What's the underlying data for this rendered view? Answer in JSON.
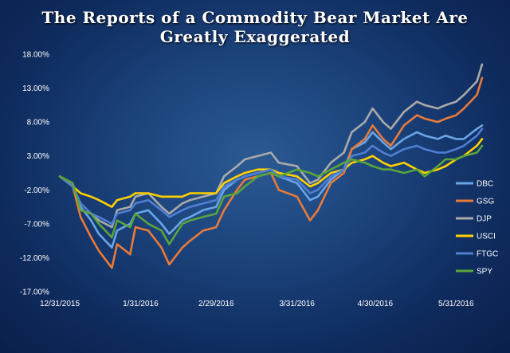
{
  "chart_data": {
    "type": "line",
    "title": "The Reports of a Commodity Bear Market Are Greatly Exaggerated",
    "x_tick_labels": [
      "12/31/2015",
      "1/31/2016",
      "2/29/2016",
      "3/31/2016",
      "4/30/2016",
      "5/31/2016"
    ],
    "x_range": [
      "2015-12-31",
      "2016-06-10"
    ],
    "y_ticks": [
      -17,
      -12,
      -7,
      -2,
      3,
      8,
      13,
      18
    ],
    "y_tick_labels": [
      "-17.00%",
      "-12.00%",
      "-7.00%",
      "-2.00%",
      "3.00%",
      "8.00%",
      "13.00%",
      "18.00%"
    ],
    "ylim": [
      -17,
      18
    ],
    "y_unit": "%",
    "grid": false,
    "legend_position": "right",
    "series": [
      {
        "name": "DBC",
        "color": "#6aa5e6",
        "points": [
          [
            "2015-12-31",
            0
          ],
          [
            "2016-01-05",
            -1.5
          ],
          [
            "2016-01-08",
            -4.5
          ],
          [
            "2016-01-12",
            -6.5
          ],
          [
            "2016-01-15",
            -8.5
          ],
          [
            "2016-01-20",
            -10.5
          ],
          [
            "2016-01-22",
            -8
          ],
          [
            "2016-01-27",
            -7
          ],
          [
            "2016-01-29",
            -5.5
          ],
          [
            "2016-02-03",
            -5
          ],
          [
            "2016-02-08",
            -7
          ],
          [
            "2016-02-11",
            -8.5
          ],
          [
            "2016-02-16",
            -6.5
          ],
          [
            "2016-02-19",
            -6
          ],
          [
            "2016-02-24",
            -5
          ],
          [
            "2016-02-29",
            -4.5
          ],
          [
            "2016-03-03",
            -2
          ],
          [
            "2016-03-08",
            -0.5
          ],
          [
            "2016-03-11",
            0
          ],
          [
            "2016-03-16",
            0.5
          ],
          [
            "2016-03-21",
            1
          ],
          [
            "2016-03-24",
            0
          ],
          [
            "2016-03-31",
            -1
          ],
          [
            "2016-04-05",
            -3.5
          ],
          [
            "2016-04-08",
            -3
          ],
          [
            "2016-04-13",
            -0.5
          ],
          [
            "2016-04-18",
            1
          ],
          [
            "2016-04-21",
            4
          ],
          [
            "2016-04-26",
            5
          ],
          [
            "2016-04-29",
            6.5
          ],
          [
            "2016-05-03",
            5
          ],
          [
            "2016-05-06",
            4
          ],
          [
            "2016-05-11",
            5.5
          ],
          [
            "2016-05-16",
            6.5
          ],
          [
            "2016-05-19",
            6
          ],
          [
            "2016-05-24",
            5.5
          ],
          [
            "2016-05-27",
            6
          ],
          [
            "2016-05-31",
            5.5
          ],
          [
            "2016-06-03",
            5.5
          ],
          [
            "2016-06-08",
            7
          ],
          [
            "2016-06-10",
            7.5
          ]
        ]
      },
      {
        "name": "GSG",
        "color": "#e87a3a",
        "points": [
          [
            "2015-12-31",
            0
          ],
          [
            "2016-01-05",
            -1.5
          ],
          [
            "2016-01-08",
            -6
          ],
          [
            "2016-01-12",
            -9
          ],
          [
            "2016-01-15",
            -11
          ],
          [
            "2016-01-20",
            -13.5
          ],
          [
            "2016-01-22",
            -10
          ],
          [
            "2016-01-27",
            -11.5
          ],
          [
            "2016-01-29",
            -7.5
          ],
          [
            "2016-02-03",
            -8
          ],
          [
            "2016-02-08",
            -10.5
          ],
          [
            "2016-02-11",
            -13
          ],
          [
            "2016-02-16",
            -10.5
          ],
          [
            "2016-02-19",
            -9.5
          ],
          [
            "2016-02-24",
            -8
          ],
          [
            "2016-02-29",
            -7.5
          ],
          [
            "2016-03-03",
            -5
          ],
          [
            "2016-03-08",
            -2
          ],
          [
            "2016-03-11",
            -0.5
          ],
          [
            "2016-03-16",
            0
          ],
          [
            "2016-03-21",
            0.5
          ],
          [
            "2016-03-24",
            -2
          ],
          [
            "2016-03-31",
            -3
          ],
          [
            "2016-04-05",
            -6.5
          ],
          [
            "2016-04-08",
            -5
          ],
          [
            "2016-04-13",
            -1
          ],
          [
            "2016-04-18",
            0.5
          ],
          [
            "2016-04-21",
            4
          ],
          [
            "2016-04-26",
            5.5
          ],
          [
            "2016-04-29",
            7.5
          ],
          [
            "2016-05-03",
            5.5
          ],
          [
            "2016-05-06",
            4.5
          ],
          [
            "2016-05-11",
            7.5
          ],
          [
            "2016-05-16",
            9
          ],
          [
            "2016-05-19",
            8.5
          ],
          [
            "2016-05-24",
            8
          ],
          [
            "2016-05-27",
            8.5
          ],
          [
            "2016-05-31",
            9
          ],
          [
            "2016-06-03",
            10
          ],
          [
            "2016-06-08",
            12
          ],
          [
            "2016-06-10",
            14.5
          ]
        ]
      },
      {
        "name": "DJP",
        "color": "#aaaaaa",
        "points": [
          [
            "2015-12-31",
            0
          ],
          [
            "2016-01-05",
            -1.5
          ],
          [
            "2016-01-08",
            -4
          ],
          [
            "2016-01-12",
            -5.5
          ],
          [
            "2016-01-15",
            -6.5
          ],
          [
            "2016-01-20",
            -7.5
          ],
          [
            "2016-01-22",
            -5
          ],
          [
            "2016-01-27",
            -4.5
          ],
          [
            "2016-01-29",
            -3
          ],
          [
            "2016-02-03",
            -2.5
          ],
          [
            "2016-02-08",
            -4.5
          ],
          [
            "2016-02-11",
            -5.5
          ],
          [
            "2016-02-16",
            -4
          ],
          [
            "2016-02-19",
            -3.5
          ],
          [
            "2016-02-24",
            -3
          ],
          [
            "2016-02-29",
            -2.5
          ],
          [
            "2016-03-03",
            0
          ],
          [
            "2016-03-08",
            1.5
          ],
          [
            "2016-03-11",
            2.5
          ],
          [
            "2016-03-16",
            3
          ],
          [
            "2016-03-21",
            3.5
          ],
          [
            "2016-03-24",
            2
          ],
          [
            "2016-03-31",
            1.5
          ],
          [
            "2016-04-05",
            -1
          ],
          [
            "2016-04-08",
            -0.5
          ],
          [
            "2016-04-13",
            2
          ],
          [
            "2016-04-18",
            3.5
          ],
          [
            "2016-04-21",
            6.5
          ],
          [
            "2016-04-26",
            8
          ],
          [
            "2016-04-29",
            10
          ],
          [
            "2016-05-03",
            8
          ],
          [
            "2016-05-06",
            7
          ],
          [
            "2016-05-11",
            9.5
          ],
          [
            "2016-05-16",
            11
          ],
          [
            "2016-05-19",
            10.5
          ],
          [
            "2016-05-24",
            10
          ],
          [
            "2016-05-27",
            10.5
          ],
          [
            "2016-05-31",
            11
          ],
          [
            "2016-06-03",
            12
          ],
          [
            "2016-06-08",
            14
          ],
          [
            "2016-06-10",
            16.5
          ]
        ]
      },
      {
        "name": "USCI",
        "color": "#ffd000",
        "points": [
          [
            "2015-12-31",
            0
          ],
          [
            "2016-01-05",
            -1.5
          ],
          [
            "2016-01-08",
            -2.5
          ],
          [
            "2016-01-12",
            -3
          ],
          [
            "2016-01-15",
            -3.5
          ],
          [
            "2016-01-20",
            -4.5
          ],
          [
            "2016-01-22",
            -3.5
          ],
          [
            "2016-01-27",
            -3
          ],
          [
            "2016-01-29",
            -2.5
          ],
          [
            "2016-02-03",
            -2.5
          ],
          [
            "2016-02-08",
            -3
          ],
          [
            "2016-02-11",
            -3
          ],
          [
            "2016-02-16",
            -3
          ],
          [
            "2016-02-19",
            -2.5
          ],
          [
            "2016-02-24",
            -2.5
          ],
          [
            "2016-02-29",
            -2.5
          ],
          [
            "2016-03-03",
            -1
          ],
          [
            "2016-03-08",
            0
          ],
          [
            "2016-03-11",
            0.5
          ],
          [
            "2016-03-16",
            1
          ],
          [
            "2016-03-21",
            1
          ],
          [
            "2016-03-24",
            0.5
          ],
          [
            "2016-03-31",
            0
          ],
          [
            "2016-04-05",
            -1.5
          ],
          [
            "2016-04-08",
            -1
          ],
          [
            "2016-04-13",
            0.5
          ],
          [
            "2016-04-18",
            1
          ],
          [
            "2016-04-21",
            2
          ],
          [
            "2016-04-26",
            2.5
          ],
          [
            "2016-04-29",
            3
          ],
          [
            "2016-05-03",
            2
          ],
          [
            "2016-05-06",
            1.5
          ],
          [
            "2016-05-11",
            2
          ],
          [
            "2016-05-16",
            1
          ],
          [
            "2016-05-19",
            0.5
          ],
          [
            "2016-05-24",
            1
          ],
          [
            "2016-05-27",
            1.5
          ],
          [
            "2016-05-31",
            2.5
          ],
          [
            "2016-06-03",
            3
          ],
          [
            "2016-06-08",
            4.5
          ],
          [
            "2016-06-10",
            5.5
          ]
        ]
      },
      {
        "name": "FTGC",
        "color": "#4f7fd3",
        "points": [
          [
            "2015-12-31",
            0
          ],
          [
            "2016-01-05",
            -1.5
          ],
          [
            "2016-01-08",
            -4
          ],
          [
            "2016-01-12",
            -5.5
          ],
          [
            "2016-01-15",
            -6
          ],
          [
            "2016-01-20",
            -7
          ],
          [
            "2016-01-22",
            -5.5
          ],
          [
            "2016-01-27",
            -5
          ],
          [
            "2016-01-29",
            -4
          ],
          [
            "2016-02-03",
            -3.5
          ],
          [
            "2016-02-08",
            -5
          ],
          [
            "2016-02-11",
            -6
          ],
          [
            "2016-02-16",
            -5
          ],
          [
            "2016-02-19",
            -4.5
          ],
          [
            "2016-02-24",
            -4
          ],
          [
            "2016-02-29",
            -3.5
          ],
          [
            "2016-03-03",
            -1.5
          ],
          [
            "2016-03-08",
            -0.5
          ],
          [
            "2016-03-11",
            0
          ],
          [
            "2016-03-16",
            0.5
          ],
          [
            "2016-03-21",
            1
          ],
          [
            "2016-03-24",
            0
          ],
          [
            "2016-03-31",
            -0.5
          ],
          [
            "2016-04-05",
            -2.5
          ],
          [
            "2016-04-08",
            -2
          ],
          [
            "2016-04-13",
            0
          ],
          [
            "2016-04-18",
            1
          ],
          [
            "2016-04-21",
            3
          ],
          [
            "2016-04-26",
            3.5
          ],
          [
            "2016-04-29",
            4.5
          ],
          [
            "2016-05-03",
            3.5
          ],
          [
            "2016-05-06",
            3
          ],
          [
            "2016-05-11",
            4
          ],
          [
            "2016-05-16",
            4.5
          ],
          [
            "2016-05-19",
            4
          ],
          [
            "2016-05-24",
            3.5
          ],
          [
            "2016-05-27",
            3.5
          ],
          [
            "2016-05-31",
            4
          ],
          [
            "2016-06-03",
            4.5
          ],
          [
            "2016-06-08",
            6
          ],
          [
            "2016-06-10",
            7
          ]
        ]
      },
      {
        "name": "SPY",
        "color": "#5aa53a",
        "points": [
          [
            "2015-12-31",
            0
          ],
          [
            "2016-01-05",
            -1
          ],
          [
            "2016-01-08",
            -5
          ],
          [
            "2016-01-12",
            -5.5
          ],
          [
            "2016-01-15",
            -7
          ],
          [
            "2016-01-20",
            -9
          ],
          [
            "2016-01-22",
            -6.5
          ],
          [
            "2016-01-27",
            -7.5
          ],
          [
            "2016-01-29",
            -5.5
          ],
          [
            "2016-02-03",
            -7
          ],
          [
            "2016-02-08",
            -8
          ],
          [
            "2016-02-11",
            -10
          ],
          [
            "2016-02-16",
            -7
          ],
          [
            "2016-02-19",
            -6.5
          ],
          [
            "2016-02-24",
            -6
          ],
          [
            "2016-02-29",
            -5.5
          ],
          [
            "2016-03-03",
            -3
          ],
          [
            "2016-03-08",
            -2.5
          ],
          [
            "2016-03-11",
            -1.5
          ],
          [
            "2016-03-16",
            0
          ],
          [
            "2016-03-21",
            0.5
          ],
          [
            "2016-03-24",
            0
          ],
          [
            "2016-03-31",
            1
          ],
          [
            "2016-04-05",
            0.5
          ],
          [
            "2016-04-08",
            0
          ],
          [
            "2016-04-13",
            1
          ],
          [
            "2016-04-18",
            2
          ],
          [
            "2016-04-21",
            2.5
          ],
          [
            "2016-04-26",
            2
          ],
          [
            "2016-04-29",
            1.5
          ],
          [
            "2016-05-03",
            1
          ],
          [
            "2016-05-06",
            1
          ],
          [
            "2016-05-11",
            0.5
          ],
          [
            "2016-05-16",
            1
          ],
          [
            "2016-05-19",
            0
          ],
          [
            "2016-05-24",
            1.5
          ],
          [
            "2016-05-27",
            2.5
          ],
          [
            "2016-05-31",
            2.5
          ],
          [
            "2016-06-03",
            3
          ],
          [
            "2016-06-08",
            3.5
          ],
          [
            "2016-06-10",
            4.5
          ]
        ]
      }
    ]
  }
}
